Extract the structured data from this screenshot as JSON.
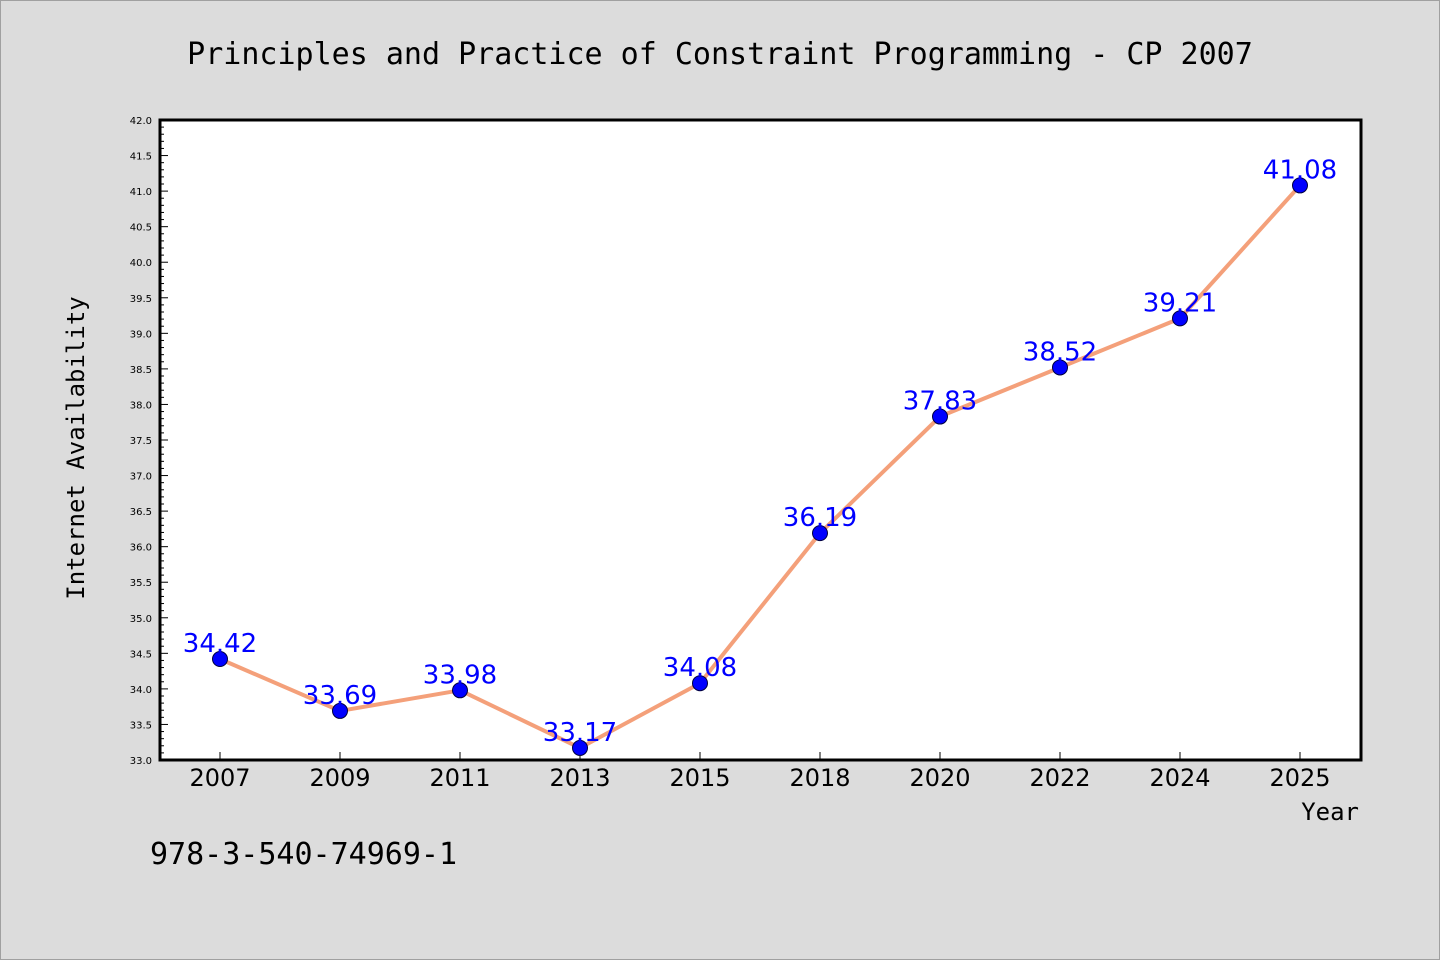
{
  "chart_data": {
    "type": "line",
    "title": "Principles and Practice of Constraint Programming - CP 2007",
    "xlabel": "Year",
    "ylabel": "Internet Availability",
    "categories": [
      "2007",
      "2009",
      "2011",
      "2013",
      "2015",
      "2018",
      "2020",
      "2022",
      "2024",
      "2025"
    ],
    "series": [
      {
        "values": [
          34.42,
          33.69,
          33.98,
          33.17,
          34.08,
          36.19,
          37.83,
          38.52,
          39.21,
          41.08
        ],
        "labels": [
          "34.42",
          "33.69",
          "33.98",
          "33.17",
          "34.08",
          "36.19",
          "37.83",
          "38.52",
          "39.21",
          "41.08"
        ],
        "line_color": "#f4a07a",
        "marker_color": "#0000ff"
      }
    ],
    "ylim": [
      33.0,
      42.0
    ],
    "yticks": [
      "33.0",
      "33.5",
      "34.0",
      "34.5",
      "35.0",
      "35.5",
      "36.0",
      "36.5",
      "37.0",
      "37.5",
      "38.0",
      "38.5",
      "39.0",
      "39.5",
      "40.0",
      "40.5",
      "41.0",
      "41.5",
      "42.0"
    ],
    "grid": false,
    "legend": "none"
  },
  "footnote": "978-3-540-74969-1",
  "colors": {
    "background": "#dcdcdc",
    "plot_background": "#ffffff",
    "line": "#f4a07a",
    "marker": "#0000ff",
    "data_label": "#0000ff"
  }
}
